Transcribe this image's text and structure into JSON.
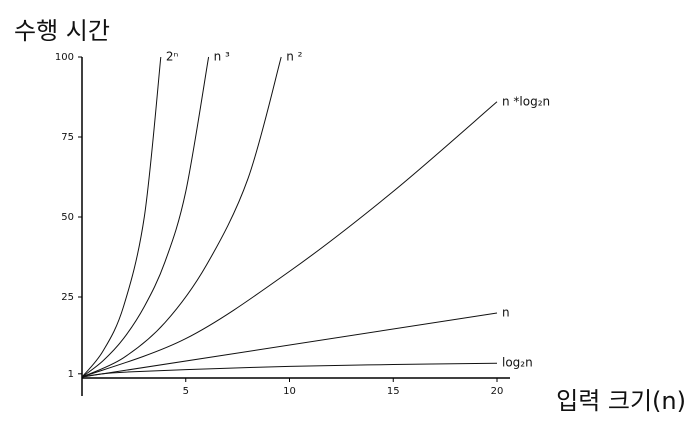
{
  "chart_data": {
    "type": "line",
    "y_label": "수행 시간",
    "x_label": "입력 크기(n)",
    "xlim": [
      0,
      20
    ],
    "xticks": [
      5,
      10,
      15,
      20
    ],
    "ylim": [
      0,
      100
    ],
    "yticks": [
      1,
      25,
      50,
      75,
      100
    ],
    "series": [
      {
        "name": "2ⁿ",
        "color": "#111111",
        "x": [
          0,
          1,
          2,
          3,
          3.8
        ],
        "values": [
          0,
          8,
          22,
          50,
          100
        ]
      },
      {
        "name": "n ³",
        "color": "#111111",
        "x": [
          0,
          1,
          2,
          3,
          4,
          5,
          6.1
        ],
        "values": [
          0,
          5,
          12,
          22,
          36,
          58,
          100
        ]
      },
      {
        "name": "n ²",
        "color": "#111111",
        "x": [
          0,
          2,
          4,
          6,
          8,
          9.6
        ],
        "values": [
          0,
          6,
          17,
          35,
          62,
          100
        ]
      },
      {
        "name": "n *log₂n",
        "color": "#111111",
        "x": [
          0,
          5,
          10,
          15,
          20
        ],
        "values": [
          0,
          12,
          33,
          58,
          86
        ]
      },
      {
        "name": "n",
        "color": "#111111",
        "x": [
          0,
          20
        ],
        "values": [
          0,
          20
        ]
      },
      {
        "name": "log₂n",
        "color": "#111111",
        "x": [
          0,
          1,
          2,
          5,
          10,
          15,
          20
        ],
        "values": [
          0,
          1,
          1.5,
          2.3,
          3.3,
          3.9,
          4.3
        ]
      }
    ]
  }
}
